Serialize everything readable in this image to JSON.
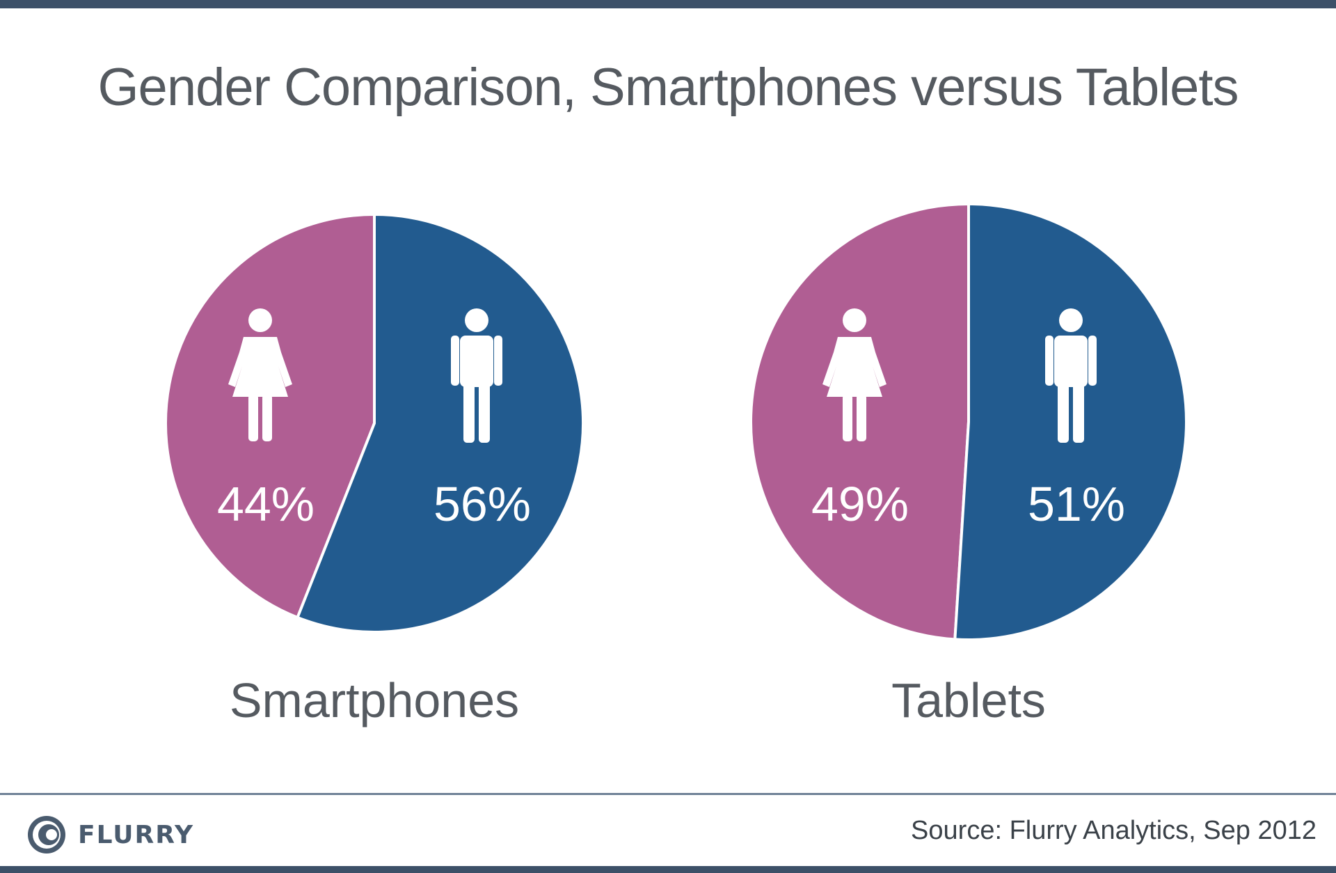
{
  "chart_data": [
    {
      "type": "pie",
      "title": "Gender Comparison, Smartphones versus Tablets",
      "caption": "Smartphones",
      "slices": [
        {
          "label": "44%",
          "value": 44,
          "color": "#b05e93",
          "icon": "female-icon"
        },
        {
          "label": "56%",
          "value": 56,
          "color": "#225b8f",
          "icon": "male-icon"
        }
      ]
    },
    {
      "type": "pie",
      "caption": "Tablets",
      "slices": [
        {
          "label": "49%",
          "value": 49,
          "color": "#b05e93",
          "icon": "female-icon"
        },
        {
          "label": "51%",
          "value": 51,
          "color": "#225b8f",
          "icon": "male-icon"
        }
      ]
    }
  ],
  "footer": {
    "brand": "FLURRY",
    "source": "Source: Flurry Analytics, Sep 2012"
  },
  "colors": {
    "female": "#b05e93",
    "male": "#225b8f",
    "bar": "#3c5068"
  }
}
